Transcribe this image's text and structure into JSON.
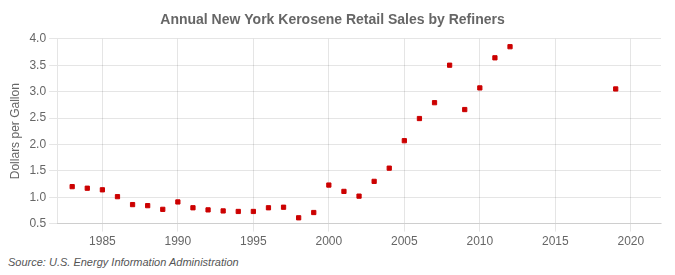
{
  "chart_data": {
    "type": "scatter",
    "title": "Annual New York Kerosene Retail Sales by Refiners",
    "y_label": "Dollars per Gallon",
    "annotation": "Source: U.S. Energy Information Administration",
    "x": [
      1983,
      1984,
      1985,
      1986,
      1987,
      1988,
      1989,
      1990,
      1991,
      1992,
      1993,
      1994,
      1995,
      1996,
      1997,
      1998,
      1999,
      2000,
      2001,
      2002,
      2003,
      2004,
      2005,
      2006,
      2007,
      2008,
      2009,
      2010,
      2011,
      2012,
      2019
    ],
    "values": [
      1.2,
      1.17,
      1.14,
      1.01,
      0.86,
      0.84,
      0.77,
      0.91,
      0.8,
      0.76,
      0.74,
      0.73,
      0.73,
      0.8,
      0.81,
      0.61,
      0.71,
      1.23,
      1.11,
      1.02,
      1.3,
      1.55,
      2.07,
      2.49,
      2.79,
      3.5,
      2.66,
      3.07,
      3.64,
      3.85,
      3.05
    ],
    "color": "#CC0000",
    "marker": "square",
    "xlim": [
      1982,
      2022
    ],
    "xticks": [
      1985,
      1990,
      1995,
      2000,
      2005,
      2010,
      2015,
      2020
    ],
    "ylim": [
      0.5,
      4.0
    ],
    "yticks": [
      0.5,
      {
        "value": 1.0,
        "label": "1.0"
      },
      1.5,
      {
        "value": 2.0,
        "label": "2.0"
      },
      2.5,
      {
        "value": 3.0,
        "label": "3.0"
      },
      3.5,
      {
        "value": 4.0,
        "label": "4.0"
      }
    ],
    "grid": true
  }
}
